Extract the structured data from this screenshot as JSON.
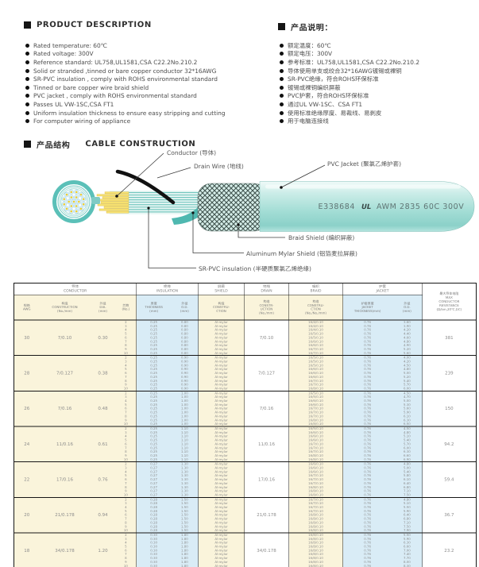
{
  "colors": {
    "accent_teal": "#5BC0B8",
    "table_cream": "#FAF4DB",
    "table_blue": "#D9ECF6",
    "conductor_yellow": "#F8E272",
    "border_black": "#1A1A1A"
  },
  "product_description": {
    "title": "PRODUCT DESCRIPTION",
    "items": [
      "Rated temperature: 60℃",
      "Rated voltage: 300V",
      "Reference standard: UL758,UL1581,CSA C22.2No.210.2",
      "Solid or stranded ,tinned or bare copper conductor 32*16AWG",
      "SR-PVC insulation , comply with ROHS environmental standard",
      "Tinned or bare copper wire braid shield",
      "PVC jacket , comply with ROHS environmental standard",
      "Passes UL VW-1SC,CSA FT1",
      "Uniform insulation thickness to ensure easy stripping and cutting",
      "For computer wiring of appliance"
    ]
  },
  "product_description_cn": {
    "title": "产品说明：",
    "items": [
      "额定温度：60℃",
      "额定电压：300V",
      "参考标准：UL758,UL1581,CSA C22.2No.210.2",
      "导体使用单支或绞合32*16AWG镀锡或裸铜",
      "SR-PVC绝缘，符合ROHS环保标准",
      "镀锡或裸铜编织屏蔽",
      "PVC护套，符合ROHS环保标准",
      "通过UL VW-1SC、CSA FT1",
      "使用标准绝缘厚度、易裁线、易剥皮",
      "用于电脑连接线"
    ]
  },
  "construction": {
    "title_cn": "产品结构",
    "title_en": "CABLE CONSTRUCTION",
    "labels": {
      "conductor": "Conductor (导体)",
      "drain": "Drain Wire (地线)",
      "jacket": "PVC Jacket (聚氯乙烯护套)",
      "braid": "Braid Shield (编织屏蔽)",
      "mylar": "Aluminum Mylar Shield (铝箔麦拉屏蔽)",
      "insulation": "SR-PVC insulation (半硬质聚氯乙烯绝缘)"
    },
    "jacket_print_left": "E338684",
    "jacket_print_ul": "UL",
    "jacket_print_right": "AWM 2835 60C 300V"
  },
  "table": {
    "group_headers": [
      {
        "cn": "导体",
        "en": "CONDUCTOR",
        "span": 4
      },
      {
        "cn": "绝缘",
        "en": "INSULATION",
        "span": 2
      },
      {
        "cn": "屏蔽",
        "en": "SHIELD",
        "span": 1
      },
      {
        "cn": "地线",
        "en": "DRAIN",
        "span": 1
      },
      {
        "cn": "编织",
        "en": "BRAID",
        "span": 1
      },
      {
        "cn": "护套",
        "en": "JACKET",
        "span": 2
      }
    ],
    "resistance_header": "最大导体电阻\nMAX\nCONDUCTOR\nRESISTANCE\n(Ω/km,20℃,DC)",
    "sub_headers": [
      "规格\nAWG",
      "构造\nCONSTRUCTION\n(No./mm)",
      "外径\nDIA.\n(mm)",
      "芯数\n(No.)",
      "厚度\nTHICKNESS\n(mm)",
      "外径\nO.D.\n(mm)",
      "构造\nCONSTRU-\nCTION",
      "构造\nCONSTR-\nUCTION\n(No./mm)",
      "构造\nCONSTRU-\nCTION\n(No./No./mm)",
      "护套厚度\nJACKET\nTHICKNESS(mm)",
      "外径\nO.D.\n(mm)"
    ],
    "rows": [
      {
        "awg": "30",
        "construction": "7/0.10",
        "dia": "0.30",
        "cores": [
          "2",
          "3",
          "4",
          "5",
          "6",
          "7",
          "8",
          "9",
          "10"
        ],
        "thickness": "0.25",
        "ins_od": "0.80",
        "shield": "Al-mylar",
        "drain": "7/0.10",
        "braid": [
          "16/4/0.10",
          "16/4/0.10",
          "16/4/0.10",
          "16/5/0.10",
          "16/5/0.10",
          "16/6/0.10",
          "16/6/0.10",
          "16/7/0.10",
          "16/7/0.10"
        ],
        "jacket_thickness": "0.76",
        "jacket_od": [
          "3.60",
          "3.90",
          "4.20",
          "4.40",
          "4.60",
          "4.80",
          "4.90",
          "5.20",
          "5.60"
        ],
        "resistance": "381"
      },
      {
        "awg": "28",
        "construction": "7/0.127",
        "dia": "0.38",
        "cores": [
          "2",
          "3",
          "4",
          "5",
          "6",
          "7",
          "8",
          "9",
          "10"
        ],
        "thickness": "0.25",
        "ins_od": "0.90",
        "shield": "Al-mylar",
        "drain": "7/0.127",
        "braid": [
          "16/5/0.10",
          "16/5/0.10",
          "16/5/0.10",
          "16/6/0.10",
          "16/6/0.10",
          "16/6/0.10",
          "16/7/0.10",
          "16/7/0.10",
          "16/8/0.10"
        ],
        "jacket_thickness": "0.76",
        "jacket_od": [
          "4.00",
          "4.20",
          "4.50",
          "4.80",
          "5.00",
          "5.20",
          "5.40",
          "5.70",
          "6.00"
        ],
        "resistance": "239"
      },
      {
        "awg": "26",
        "construction": "7/0.16",
        "dia": "0.48",
        "cores": [
          "2",
          "3",
          "4",
          "5",
          "6",
          "7",
          "8",
          "9",
          "10"
        ],
        "thickness": "0.25",
        "ins_od": "1.00",
        "shield": "Al-mylar",
        "drain": "7/0.16",
        "braid": [
          "16/5/0.10",
          "16/5/0.10",
          "16/6/0.10",
          "16/6/0.10",
          "16/7/0.10",
          "16/7/0.10",
          "16/7/0.10",
          "16/8/0.10",
          "16/8/0.10"
        ],
        "jacket_thickness": "0.76",
        "jacket_od": [
          "4.50",
          "4.70",
          "5.00",
          "5.30",
          "5.60",
          "5.90",
          "6.10",
          "6.30",
          "6.50"
        ],
        "resistance": "150"
      },
      {
        "awg": "24",
        "construction": "11/0.16",
        "dia": "0.61",
        "cores": [
          "2",
          "3",
          "4",
          "5",
          "6",
          "7",
          "8",
          "9",
          "10"
        ],
        "thickness": "0.25",
        "ins_od": "1.10",
        "shield": "Al-mylar",
        "drain": "11/0.16",
        "braid": [
          "16/5/0.10",
          "16/6/0.10",
          "16/6/0.10",
          "16/6/0.10",
          "16/7/0.10",
          "16/7/0.10",
          "16/7/0.10",
          "16/8/0.10",
          "16/8/0.10"
        ],
        "jacket_thickness": "0.76",
        "jacket_od": [
          "4.50",
          "4.80",
          "5.10",
          "5.40",
          "5.70",
          "6.00",
          "6.30",
          "6.60",
          "6.90"
        ],
        "resistance": "94.2"
      },
      {
        "awg": "22",
        "construction": "17/0.16",
        "dia": "0.76",
        "cores": [
          "2",
          "3",
          "4",
          "5",
          "6",
          "7",
          "8",
          "9",
          "10"
        ],
        "thickness": "0.27",
        "ins_od": "1.30",
        "shield": "Al-mylar",
        "drain": "17/0.16",
        "braid": [
          "16/6/0.10",
          "16/6/0.10",
          "16/6/0.10",
          "16/7/0.10",
          "16/7/0.10",
          "16/7/0.10",
          "16/8/0.10",
          "16/8/0.10",
          "16/8/0.10"
        ],
        "jacket_thickness": "0.76",
        "jacket_od": [
          "4.80",
          "5.00",
          "5.40",
          "5.80",
          "6.10",
          "6.40",
          "6.80",
          "7.10",
          "7.50"
        ],
        "resistance": "59.4"
      },
      {
        "awg": "20",
        "construction": "21/0.178",
        "dia": "0.94",
        "cores": [
          "2",
          "3",
          "4",
          "5",
          "6",
          "7",
          "8",
          "9",
          "10"
        ],
        "thickness": "0.28",
        "ins_od": "1.50",
        "shield": "Al-mylar",
        "drain": "21/0.178",
        "braid": [
          "16/7/0.10",
          "16/7/0.10",
          "16/7/0.10",
          "16/7/0.10",
          "16/8/0.10",
          "16/8/0.10",
          "16/8/0.10",
          "16/8/0.10",
          "16/8/0.10"
        ],
        "jacket_thickness": "0.76",
        "jacket_od": [
          "4.80",
          "5.10",
          "5.50",
          "5.90",
          "6.40",
          "6.80",
          "7.10",
          "7.50",
          "7.90"
        ],
        "resistance": "36.7"
      },
      {
        "awg": "18",
        "construction": "34/0.178",
        "dia": "1.20",
        "cores": [
          "2",
          "3",
          "4",
          "5",
          "6",
          "7",
          "8",
          "9",
          "10"
        ],
        "thickness": "0.30",
        "ins_od": "1.80",
        "shield": "Al-mylar",
        "drain": "34/0.178",
        "braid": [
          "16/8/0.10",
          "16/8/0.10",
          "16/8/0.10",
          "16/8/0.10",
          "16/8/0.10",
          "16/8/0.10",
          "16/8/0.10",
          "16/8/0.10",
          "16/8/0.10"
        ],
        "jacket_thickness": "0.76",
        "jacket_od": [
          "5.50",
          "5.90",
          "6.30",
          "6.60",
          "7.00",
          "7.40",
          "7.70",
          "8.00",
          "8.30"
        ],
        "resistance": "23.2"
      }
    ]
  }
}
